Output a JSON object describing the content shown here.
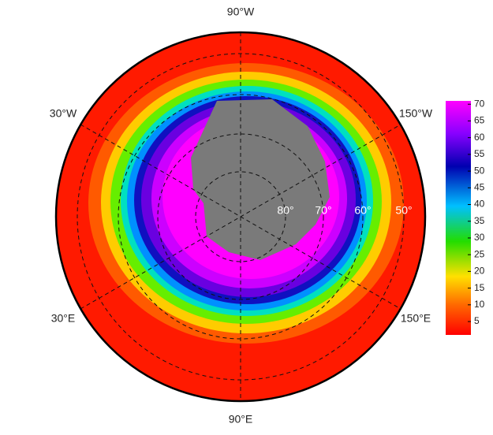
{
  "map": {
    "longitude_labels": [
      "90°W",
      "30°W",
      "150°W",
      "30°E",
      "150°E",
      "90°E"
    ],
    "latitude_labels": [
      "80°",
      "70°",
      "60°",
      "50°"
    ],
    "colorbar": {
      "lim": [
        1,
        71
      ],
      "ticks": [
        5,
        10,
        15,
        20,
        25,
        30,
        35,
        40,
        45,
        50,
        55,
        60,
        65,
        70
      ]
    }
  }
}
